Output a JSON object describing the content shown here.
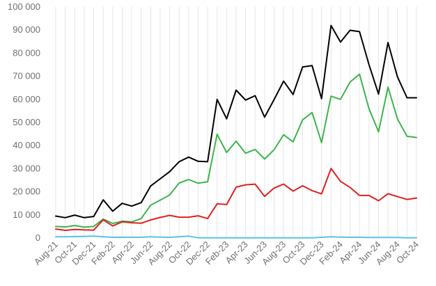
{
  "chart_data": {
    "type": "line",
    "title": "",
    "xlabel": "",
    "ylabel": "",
    "ylim": [
      0,
      100000
    ],
    "yticks": [
      "0",
      "10 000",
      "20 000",
      "30 000",
      "40 000",
      "50 000",
      "60 000",
      "70 000",
      "80 000",
      "90 000",
      "100 000"
    ],
    "ytick_values": [
      0,
      10000,
      20000,
      30000,
      40000,
      50000,
      60000,
      70000,
      80000,
      90000,
      100000
    ],
    "grid": "vertical",
    "legend": "none",
    "x": [
      "Aug-21",
      "Sep-21",
      "Oct-21",
      "Nov-21",
      "Dec-21",
      "Jan-22",
      "Feb-22",
      "Mar-22",
      "Apr-22",
      "May-22",
      "Jun-22",
      "Jul-22",
      "Aug-22",
      "Sep-22",
      "Oct-22",
      "Nov-22",
      "Dec-22",
      "Jan-23",
      "Feb-23",
      "Mar-23",
      "Apr-23",
      "May-23",
      "Jun-23",
      "Jul-23",
      "Aug-23",
      "Sep-23",
      "Oct-23",
      "Nov-23",
      "Dec-23",
      "Jan-24",
      "Feb-24",
      "Mar-24",
      "Apr-24",
      "May-24",
      "Jun-24",
      "Jul-24",
      "Aug-24",
      "Sep-24",
      "Oct-24"
    ],
    "xtick_labels": [
      "Aug-21",
      "Oct-21",
      "Dec-21",
      "Feb-22",
      "Apr-22",
      "Jun-22",
      "Aug-22",
      "Oct-22",
      "Dec-22",
      "Feb-23",
      "Apr-23",
      "Jun-23",
      "Aug-23",
      "Oct-23",
      "Dec-23",
      "Feb-24",
      "Apr-24",
      "Jun-24",
      "Aug-24",
      "Oct-24"
    ],
    "series": [
      {
        "color": "#000000",
        "values": [
          9500,
          8800,
          9900,
          8800,
          9300,
          16500,
          11600,
          15000,
          13800,
          15300,
          22500,
          25600,
          28700,
          33000,
          35000,
          33200,
          33000,
          60000,
          51600,
          64000,
          59700,
          61600,
          52300,
          59900,
          67900,
          62100,
          74000,
          74600,
          60300,
          92000,
          84800,
          89900,
          89300,
          75000,
          62300,
          84600,
          69700,
          60700,
          60700
        ]
      },
      {
        "color": "#3cb44b",
        "values": [
          5000,
          4800,
          5400,
          4700,
          5000,
          8200,
          6300,
          7300,
          7000,
          8400,
          14200,
          16400,
          18600,
          23800,
          25300,
          23700,
          24300,
          44900,
          37000,
          41900,
          36700,
          38300,
          34200,
          38200,
          44700,
          41600,
          51100,
          54300,
          41300,
          61400,
          60000,
          67500,
          70900,
          55900,
          46000,
          65300,
          51500,
          44000,
          43500
        ]
      },
      {
        "color": "#e02020",
        "values": [
          3900,
          3300,
          3700,
          3500,
          3400,
          7900,
          5200,
          7000,
          6600,
          6400,
          7800,
          8900,
          9800,
          9000,
          9000,
          9600,
          8400,
          14800,
          14500,
          22000,
          23000,
          23300,
          18000,
          21600,
          23300,
          20300,
          22600,
          20500,
          19100,
          30100,
          24500,
          21900,
          18400,
          18400,
          16100,
          19200,
          17900,
          16700,
          17300
        ]
      },
      {
        "color": "#5bc0eb",
        "values": [
          500,
          500,
          600,
          700,
          800,
          500,
          300,
          300,
          300,
          300,
          500,
          400,
          300,
          500,
          800,
          100,
          100,
          100,
          100,
          100,
          100,
          100,
          100,
          100,
          100,
          100,
          100,
          100,
          300,
          500,
          400,
          300,
          300,
          200,
          200,
          200,
          200,
          100,
          100
        ]
      }
    ]
  }
}
